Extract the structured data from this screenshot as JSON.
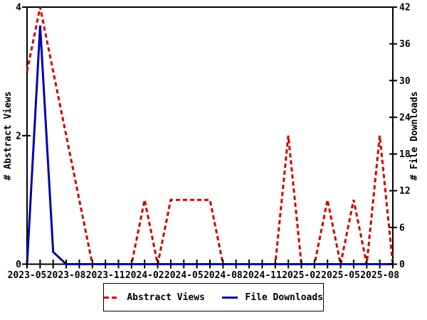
{
  "chart": {
    "left_axis": {
      "title": "# Abstract Views",
      "tick_labels": [
        "0",
        "2",
        "4"
      ]
    },
    "right_axis": {
      "title": "# File Downloads",
      "tick_labels": [
        "0",
        "6",
        "12",
        "18",
        "24",
        "30",
        "36",
        "42"
      ]
    },
    "colors": {
      "abstract_views": "#cc0000",
      "file_downloads": "#0000b3",
      "axis": "#000000",
      "background": "#ffffff"
    },
    "legend": [
      {
        "label": "Abstract Views",
        "color": "#cc0000",
        "dashed": true
      },
      {
        "label": "File Downloads",
        "color": "#0000b3",
        "dashed": false
      }
    ]
  },
  "chart_data": {
    "type": "line",
    "x": [
      "2023-05",
      "2023-06",
      "2023-07",
      "2023-08",
      "2023-09",
      "2023-10",
      "2023-11",
      "2023-12",
      "2024-01",
      "2024-02",
      "2024-03",
      "2024-04",
      "2024-05",
      "2024-06",
      "2024-07",
      "2024-08",
      "2024-09",
      "2024-10",
      "2024-11",
      "2024-12",
      "2025-01",
      "2025-02",
      "2025-03",
      "2025-04",
      "2025-05",
      "2025-06",
      "2025-07",
      "2025-08",
      "2025-09"
    ],
    "x_labeled_ticks": [
      "2023-05",
      "2023-08",
      "2023-11",
      "2024-02",
      "2024-05",
      "2024-08",
      "2024-11",
      "2025-02",
      "2025-05",
      "2025-08"
    ],
    "x_label_every": 3,
    "series": [
      {
        "name": "Abstract Views",
        "axis": "left",
        "color": "#cc0000",
        "style": "dashed",
        "values": [
          3,
          4,
          3,
          2,
          1,
          0,
          0,
          0,
          0,
          1,
          0,
          1,
          1,
          1,
          1,
          0,
          0,
          0,
          0,
          0,
          2,
          0,
          0,
          1,
          0,
          1,
          0,
          2,
          0
        ]
      },
      {
        "name": "File Downloads",
        "axis": "right",
        "color": "#0000b3",
        "style": "solid",
        "values": [
          0,
          39,
          2,
          0,
          0,
          0,
          0,
          0,
          0,
          0,
          0,
          0,
          0,
          0,
          0,
          0,
          0,
          0,
          0,
          0,
          0,
          0,
          0,
          0,
          0,
          0,
          0,
          0,
          0
        ]
      }
    ],
    "left_ylim": [
      0,
      4
    ],
    "left_yticks": [
      0,
      2,
      4
    ],
    "right_ylim": [
      0,
      42
    ],
    "right_yticks": [
      0,
      6,
      12,
      18,
      24,
      30,
      36,
      42
    ],
    "ylabel_left": "# Abstract Views",
    "ylabel_right": "# File Downloads",
    "grid": false,
    "legend_position": "bottom-center"
  }
}
